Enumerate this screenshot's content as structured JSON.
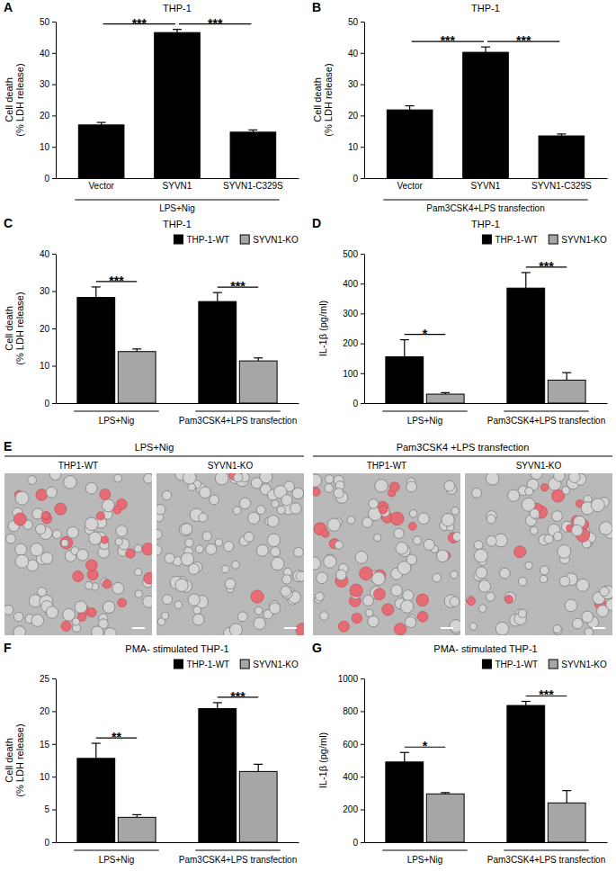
{
  "chart_data": [
    {
      "panel": "A",
      "type": "bar",
      "title": "THP-1",
      "y_label": [
        "Cell death",
        "(% LDH release)"
      ],
      "categories": [
        "Vector",
        "SYVN1",
        "SYVN1-C329S"
      ],
      "values": [
        17.0,
        46.5,
        14.7
      ],
      "errors": [
        0.8,
        1.0,
        0.7
      ],
      "color": "#000000",
      "x_label": "LPS+Nig",
      "ylim": [
        0,
        50
      ],
      "yticks": [
        0,
        10,
        20,
        30,
        40,
        50
      ],
      "annotations": [
        {
          "text": "***",
          "from": 0,
          "to": 1
        },
        {
          "text": "***",
          "from": 1,
          "to": 2
        }
      ]
    },
    {
      "panel": "B",
      "type": "bar",
      "title": "THP-1",
      "y_label": [
        "Cell death",
        "(% LDH release)"
      ],
      "categories": [
        "Vector",
        "SYVN1",
        "SYVN1-C329S"
      ],
      "values": [
        21.8,
        40.2,
        13.5
      ],
      "errors": [
        1.3,
        1.7,
        0.6
      ],
      "color": "#000000",
      "x_label": "Pam3CSK4+LPS transfection",
      "ylim": [
        0,
        50
      ],
      "yticks": [
        0,
        10,
        20,
        30,
        40,
        50
      ],
      "annotations": [
        {
          "text": "***",
          "from": 0,
          "to": 1
        },
        {
          "text": "***",
          "from": 1,
          "to": 2
        }
      ]
    },
    {
      "panel": "C",
      "type": "bar",
      "title": "THP-1",
      "y_label": [
        "Cell death",
        "(% LDH release)"
      ],
      "categories": [
        "LPS+Nig",
        "Pam3CSK4+LPS transfection"
      ],
      "series": [
        {
          "name": "THP-1-WT",
          "color": "#000000",
          "values": [
            28.3,
            27.2
          ],
          "errors": [
            2.8,
            2.4
          ]
        },
        {
          "name": "SYVN1-KO",
          "color": "#a6a6a6",
          "values": [
            13.8,
            11.3
          ],
          "errors": [
            0.7,
            0.8
          ]
        }
      ],
      "ylim": [
        0,
        40
      ],
      "yticks": [
        0,
        10,
        20,
        30,
        40
      ],
      "legend": "top-right",
      "annotations": [
        {
          "text": "***",
          "category": 0
        },
        {
          "text": "***",
          "category": 1
        }
      ]
    },
    {
      "panel": "D",
      "type": "bar",
      "title": "THP-1",
      "y_label": [
        "IL-1β (pg/ml)"
      ],
      "categories": [
        "LPS+Nig",
        "Pam3CSK4+LPS transfection"
      ],
      "series": [
        {
          "name": "THP-1-WT",
          "color": "#000000",
          "values": [
            155,
            385
          ],
          "errors": [
            57,
            52
          ]
        },
        {
          "name": "SYVN1-KO",
          "color": "#a6a6a6",
          "values": [
            30,
            77
          ],
          "errors": [
            5,
            25
          ]
        }
      ],
      "ylim": [
        0,
        500
      ],
      "yticks": [
        0,
        100,
        200,
        300,
        400,
        500
      ],
      "legend": "top-right",
      "annotations": [
        {
          "text": "*",
          "category": 0
        },
        {
          "text": "***",
          "category": 1
        }
      ]
    },
    {
      "panel": "E",
      "type": "image",
      "groups": [
        {
          "title": "LPS+Nig",
          "images": [
            "THP1-WT",
            "SYVN1-KO"
          ]
        },
        {
          "title": "Pam3CSK4 +LPS transfection",
          "images": [
            "THP1-WT",
            "SYVN1-KO"
          ]
        }
      ]
    },
    {
      "panel": "F",
      "type": "bar",
      "title": "PMA- stimulated THP-1",
      "y_label": [
        "Cell death",
        "(% LDH release)"
      ],
      "categories": [
        "LPS+Nig",
        "Pam3CSK4+LPS transfection"
      ],
      "series": [
        {
          "name": "THP-1-WT",
          "color": "#000000",
          "values": [
            12.8,
            20.4
          ],
          "errors": [
            2.3,
            0.9
          ]
        },
        {
          "name": "SYVN1-KO",
          "color": "#a6a6a6",
          "values": [
            3.8,
            10.8
          ],
          "errors": [
            0.4,
            1.1
          ]
        }
      ],
      "ylim": [
        0,
        25
      ],
      "yticks": [
        0,
        5,
        10,
        15,
        20,
        25
      ],
      "legend": "top-right",
      "annotations": [
        {
          "text": "**",
          "category": 0
        },
        {
          "text": "***",
          "category": 1
        }
      ]
    },
    {
      "panel": "G",
      "type": "bar",
      "title": "PMA- stimulated THP-1",
      "y_label": [
        "IL-1β (pg/ml)"
      ],
      "categories": [
        "LPS+Nig",
        "Pam3CSK4+LPS transfection"
      ],
      "series": [
        {
          "name": "THP-1-WT",
          "color": "#000000",
          "values": [
            490,
            835
          ],
          "errors": [
            58,
            25
          ]
        },
        {
          "name": "SYVN1-KO",
          "color": "#a6a6a6",
          "values": [
            295,
            240
          ],
          "errors": [
            8,
            75
          ]
        }
      ],
      "ylim": [
        0,
        1000
      ],
      "yticks": [
        0,
        200,
        400,
        600,
        800,
        1000
      ],
      "legend": "top-right",
      "annotations": [
        {
          "text": "*",
          "category": 0
        },
        {
          "text": "***",
          "category": 1
        }
      ]
    }
  ]
}
